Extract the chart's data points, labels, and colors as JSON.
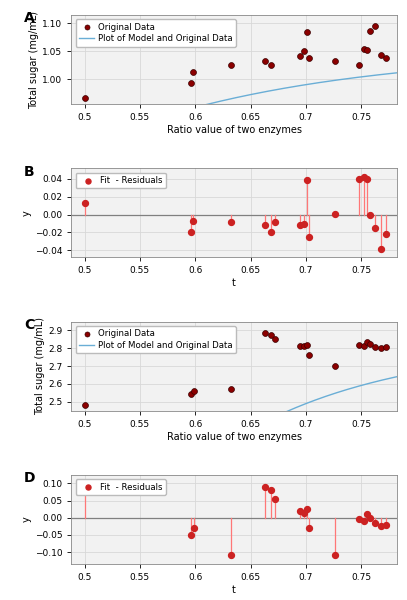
{
  "panel_A": {
    "label": "A",
    "scatter_x": [
      0.5,
      0.596,
      0.598,
      0.632,
      0.663,
      0.668,
      0.695,
      0.698,
      0.701,
      0.703,
      0.726,
      0.748,
      0.752,
      0.755,
      0.758,
      0.762,
      0.768,
      0.772
    ],
    "scatter_y": [
      0.966,
      0.993,
      1.013,
      1.025,
      1.032,
      1.025,
      1.042,
      1.05,
      1.085,
      1.038,
      1.032,
      1.025,
      1.054,
      1.052,
      1.087,
      1.095,
      1.044,
      1.038
    ],
    "ylabel": "Total sugar (mg/mL)",
    "xlabel": "Ratio value of two enzymes",
    "ylim": [
      0.955,
      1.115
    ],
    "yticks": [
      1.0,
      1.05,
      1.1
    ],
    "xlim": [
      0.488,
      0.782
    ],
    "xticks": [
      0.5,
      0.55,
      0.6,
      0.65,
      0.7,
      0.75
    ],
    "xticklabels": [
      "0.5",
      "0.55",
      "0.6",
      "0.65",
      "0.7",
      "0.75"
    ],
    "legend_labels": [
      "Original Data",
      "Plot of Model and Original Data"
    ],
    "curve_color": "#6aaed6",
    "scatter_fcolor": "#8B0000",
    "scatter_ecolor": "#3a0000"
  },
  "panel_B": {
    "label": "B",
    "res_x": [
      0.5,
      0.596,
      0.598,
      0.632,
      0.663,
      0.668,
      0.672,
      0.695,
      0.698,
      0.701,
      0.703,
      0.726,
      0.748,
      0.752,
      0.755,
      0.758,
      0.762,
      0.768,
      0.772
    ],
    "res_y": [
      0.013,
      -0.02,
      -0.007,
      -0.008,
      -0.012,
      -0.019,
      -0.008,
      -0.012,
      -0.01,
      0.039,
      -0.025,
      0.001,
      0.04,
      0.042,
      0.04,
      0.0,
      -0.015,
      -0.038,
      -0.022
    ],
    "xlabel": "t",
    "ylabel": "y",
    "ylim": [
      -0.048,
      0.052
    ],
    "yticks": [
      -0.04,
      -0.02,
      0.0,
      0.02,
      0.04
    ],
    "xlim": [
      0.488,
      0.782
    ],
    "xticks": [
      0.5,
      0.55,
      0.6,
      0.65,
      0.7,
      0.75
    ],
    "xticklabels": [
      "0.5",
      "0.55",
      "0.6",
      "0.65",
      "0.7",
      "0.75"
    ],
    "legend_label": "Fit  - Residuals",
    "line_color": "#FF7777",
    "scatter_color": "#CC2222"
  },
  "panel_C": {
    "label": "C",
    "scatter_x": [
      0.5,
      0.596,
      0.599,
      0.632,
      0.663,
      0.668,
      0.672,
      0.695,
      0.698,
      0.701,
      0.703,
      0.726,
      0.748,
      0.752,
      0.755,
      0.758,
      0.762,
      0.768,
      0.772
    ],
    "scatter_y": [
      2.48,
      2.545,
      2.56,
      2.57,
      2.885,
      2.875,
      2.852,
      2.815,
      2.812,
      2.82,
      2.765,
      2.702,
      2.82,
      2.815,
      2.835,
      2.825,
      2.81,
      2.8,
      2.805
    ],
    "ylabel": "Total sugar (mg/mL)",
    "xlabel": "Ratio value of two enzymes",
    "ylim": [
      2.45,
      2.95
    ],
    "yticks": [
      2.5,
      2.6,
      2.7,
      2.8,
      2.9
    ],
    "xlim": [
      0.488,
      0.782
    ],
    "xticks": [
      0.5,
      0.55,
      0.6,
      0.65,
      0.7,
      0.75
    ],
    "xticklabels": [
      "0.5",
      "0.55",
      "0.6",
      "0.65",
      "0.7",
      "0.75"
    ],
    "legend_labels": [
      "Original Data",
      "Plot of Model and Original Data"
    ],
    "curve_color": "#6aaed6",
    "scatter_fcolor": "#8B0000",
    "scatter_ecolor": "#3a0000"
  },
  "panel_D": {
    "label": "D",
    "res_x": [
      0.5,
      0.596,
      0.599,
      0.632,
      0.663,
      0.668,
      0.672,
      0.695,
      0.698,
      0.701,
      0.703,
      0.726,
      0.748,
      0.752,
      0.755,
      0.758,
      0.762,
      0.768,
      0.772
    ],
    "res_y": [
      0.1,
      -0.05,
      -0.03,
      -0.11,
      0.09,
      0.08,
      0.055,
      0.02,
      0.015,
      0.025,
      -0.03,
      -0.11,
      -0.005,
      -0.01,
      0.01,
      0.0,
      -0.015,
      -0.025,
      -0.02
    ],
    "xlabel": "t",
    "ylabel": "y",
    "ylim": [
      -0.135,
      0.125
    ],
    "yticks": [
      -0.1,
      -0.05,
      0.0,
      0.05,
      0.1
    ],
    "xlim": [
      0.488,
      0.782
    ],
    "xticks": [
      0.5,
      0.55,
      0.6,
      0.65,
      0.7,
      0.75
    ],
    "xticklabels": [
      "0.5",
      "0.55",
      "0.6",
      "0.65",
      "0.7",
      "0.75"
    ],
    "legend_label": "Fit  - Residuals",
    "line_color": "#FF7777",
    "scatter_color": "#CC2222"
  },
  "bg_color": "#f2f2f2",
  "grid_color": "#d8d8d8",
  "axes_color": "#555555"
}
